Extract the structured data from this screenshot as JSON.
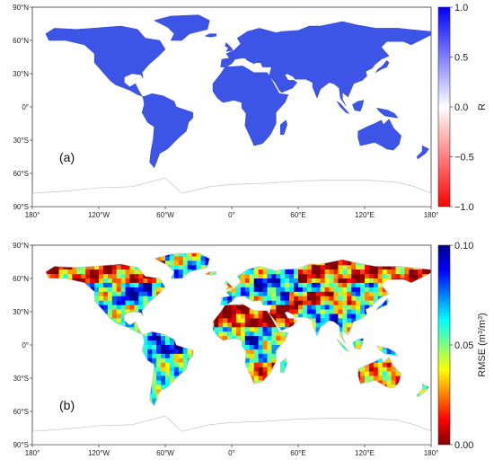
{
  "panels": [
    {
      "id": "a",
      "label": "(a)",
      "variable": "R",
      "colorbar": {
        "label": "R",
        "ticks": [
          "1.0",
          "0.5",
          "0.0",
          "−0.5",
          "−1.0"
        ],
        "range": [
          -1.0,
          1.0
        ],
        "stops": [
          "#ff0000",
          "#ffffff",
          "#0000ff"
        ]
      },
      "fill_color": "#3d55e6"
    },
    {
      "id": "b",
      "label": "(b)",
      "variable": "RMSE",
      "colorbar": {
        "label_main": "RMSE (m",
        "label_sup1": "3",
        "label_mid": "/m",
        "label_sup2": "3",
        "label_end": ")",
        "ticks": [
          "0.10",
          "0.05",
          "0.00"
        ],
        "range": [
          0.0,
          0.1
        ],
        "stops": [
          "#800000",
          "#ff0000",
          "#ff8000",
          "#ffff00",
          "#80ff80",
          "#00ffff",
          "#0080ff",
          "#0000ff",
          "#00008f"
        ]
      }
    }
  ],
  "lat_ticks": [
    "90°N",
    "60°N",
    "30°N",
    "0°",
    "30°S",
    "60°S",
    "90°S"
  ],
  "lon_ticks": [
    "180°",
    "120°W",
    "60°W",
    "0°",
    "60°E",
    "120°E",
    "180°"
  ]
}
